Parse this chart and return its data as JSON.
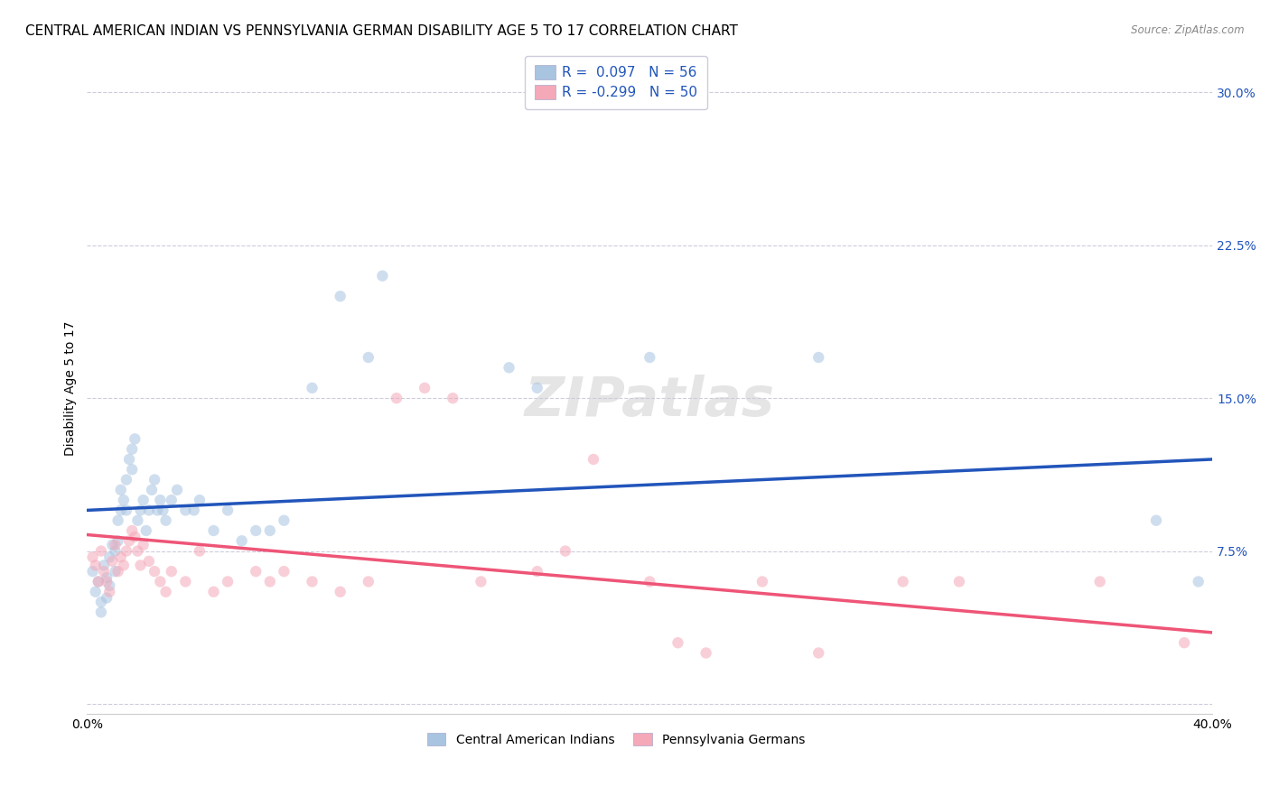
{
  "title": "CENTRAL AMERICAN INDIAN VS PENNSYLVANIA GERMAN DISABILITY AGE 5 TO 17 CORRELATION CHART",
  "source": "Source: ZipAtlas.com",
  "ylabel": "Disability Age 5 to 17",
  "ytick_values": [
    0.0,
    0.075,
    0.15,
    0.225,
    0.3
  ],
  "ytick_labels": [
    "",
    "7.5%",
    "15.0%",
    "22.5%",
    "30.0%"
  ],
  "xlim": [
    0.0,
    0.4
  ],
  "ylim": [
    -0.005,
    0.315
  ],
  "legend_r1": "R =  0.097",
  "legend_n1": "N = 56",
  "legend_r2": "R = -0.299",
  "legend_n2": "N = 50",
  "color_blue": "#A8C4E0",
  "color_pink": "#F4A8B8",
  "color_line_blue": "#2255BB",
  "color_line_pink": "#EE5577",
  "blue_scatter_x": [
    0.002,
    0.003,
    0.004,
    0.005,
    0.005,
    0.006,
    0.007,
    0.007,
    0.008,
    0.008,
    0.009,
    0.01,
    0.01,
    0.011,
    0.011,
    0.012,
    0.012,
    0.013,
    0.014,
    0.014,
    0.015,
    0.016,
    0.016,
    0.017,
    0.018,
    0.019,
    0.02,
    0.021,
    0.022,
    0.023,
    0.024,
    0.025,
    0.026,
    0.027,
    0.028,
    0.03,
    0.032,
    0.035,
    0.038,
    0.04,
    0.045,
    0.05,
    0.055,
    0.06,
    0.065,
    0.07,
    0.08,
    0.09,
    0.1,
    0.105,
    0.15,
    0.16,
    0.2,
    0.26,
    0.38,
    0.395
  ],
  "blue_scatter_y": [
    0.065,
    0.055,
    0.06,
    0.045,
    0.05,
    0.068,
    0.052,
    0.062,
    0.058,
    0.072,
    0.078,
    0.065,
    0.075,
    0.08,
    0.09,
    0.095,
    0.105,
    0.1,
    0.095,
    0.11,
    0.12,
    0.115,
    0.125,
    0.13,
    0.09,
    0.095,
    0.1,
    0.085,
    0.095,
    0.105,
    0.11,
    0.095,
    0.1,
    0.095,
    0.09,
    0.1,
    0.105,
    0.095,
    0.095,
    0.1,
    0.085,
    0.095,
    0.08,
    0.085,
    0.085,
    0.09,
    0.155,
    0.2,
    0.17,
    0.21,
    0.165,
    0.155,
    0.17,
    0.17,
    0.09,
    0.06
  ],
  "pink_scatter_x": [
    0.002,
    0.003,
    0.004,
    0.005,
    0.006,
    0.007,
    0.008,
    0.009,
    0.01,
    0.011,
    0.012,
    0.013,
    0.014,
    0.015,
    0.016,
    0.017,
    0.018,
    0.019,
    0.02,
    0.022,
    0.024,
    0.026,
    0.028,
    0.03,
    0.035,
    0.04,
    0.045,
    0.05,
    0.06,
    0.065,
    0.07,
    0.08,
    0.09,
    0.1,
    0.11,
    0.12,
    0.13,
    0.14,
    0.16,
    0.17,
    0.18,
    0.2,
    0.21,
    0.22,
    0.24,
    0.26,
    0.29,
    0.31,
    0.36,
    0.39
  ],
  "pink_scatter_y": [
    0.072,
    0.068,
    0.06,
    0.075,
    0.065,
    0.06,
    0.055,
    0.07,
    0.078,
    0.065,
    0.072,
    0.068,
    0.075,
    0.08,
    0.085,
    0.082,
    0.075,
    0.068,
    0.078,
    0.07,
    0.065,
    0.06,
    0.055,
    0.065,
    0.06,
    0.075,
    0.055,
    0.06,
    0.065,
    0.06,
    0.065,
    0.06,
    0.055,
    0.06,
    0.15,
    0.155,
    0.15,
    0.06,
    0.065,
    0.075,
    0.12,
    0.06,
    0.03,
    0.025,
    0.06,
    0.025,
    0.06,
    0.06,
    0.06,
    0.03
  ],
  "blue_line_x": [
    0.0,
    0.4
  ],
  "blue_line_y_start": 0.095,
  "blue_line_y_end": 0.12,
  "pink_line_x": [
    0.0,
    0.4
  ],
  "pink_line_y_start": 0.083,
  "pink_line_y_end": 0.035,
  "background_color": "#FFFFFF",
  "grid_color": "#CCCCDD",
  "title_fontsize": 11,
  "axis_label_fontsize": 10,
  "tick_fontsize": 10,
  "scatter_size": 80,
  "scatter_alpha": 0.55
}
